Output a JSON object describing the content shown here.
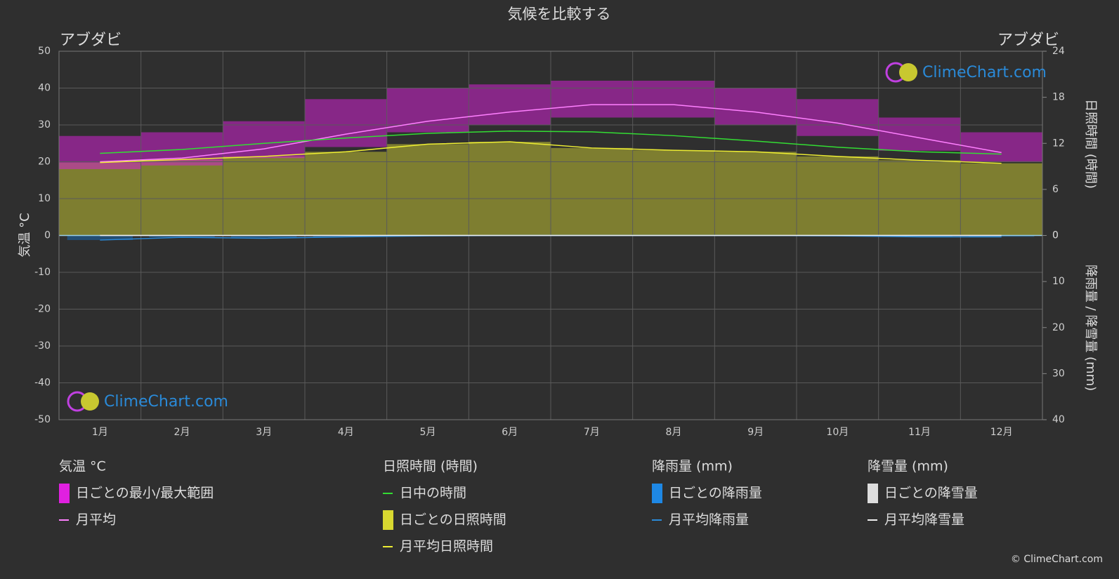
{
  "title": "気候を比較する",
  "chart_data": {
    "type": "climate",
    "location_left": "アブダビ",
    "location_right": "アブダビ",
    "y_label": "気温 °C",
    "y2_label": "日照時間 (時間)",
    "y3_label": "降雨量 / 降雪量 (mm)",
    "categories": [
      "1月",
      "2月",
      "3月",
      "4月",
      "5月",
      "6月",
      "7月",
      "8月",
      "9月",
      "10月",
      "11月",
      "12月"
    ],
    "ylim": [
      -50,
      50
    ],
    "yticks": [
      -50,
      -40,
      -30,
      -20,
      -10,
      0,
      10,
      20,
      30,
      40,
      50
    ],
    "y2lim": [
      0,
      24
    ],
    "y2ticks": [
      0,
      6,
      12,
      18,
      24
    ],
    "y3lim": [
      0,
      40
    ],
    "y3ticks": [
      0,
      10,
      20,
      30,
      40
    ],
    "grid": true,
    "temp_range": {
      "name": "日ごとの最小/最大範囲",
      "color": "#d020d0",
      "low": [
        18,
        19,
        21,
        24,
        28,
        30,
        32,
        32,
        30,
        27,
        23,
        20
      ],
      "high": [
        27,
        28,
        31,
        37,
        40,
        41,
        42,
        42,
        40,
        37,
        32,
        28
      ]
    },
    "sunshine_fill": "#8c8c30",
    "series": [
      {
        "name": "月平均",
        "color": "#ff80ff",
        "axis": "y",
        "values": [
          20,
          21,
          23.5,
          27.5,
          31,
          33.5,
          35.5,
          35.5,
          33.5,
          30.5,
          26.5,
          22.5
        ]
      },
      {
        "name": "日中の時間",
        "color": "#33dd33",
        "axis": "y2",
        "values": [
          10.7,
          11.2,
          12,
          12.7,
          13.3,
          13.6,
          13.5,
          13,
          12.3,
          11.5,
          10.9,
          10.6
        ]
      },
      {
        "name": "月平均日照時間",
        "color": "#eeee33",
        "axis": "y2",
        "values": [
          9.5,
          9.9,
          10.3,
          10.9,
          11.9,
          12.2,
          11.4,
          11.1,
          10.9,
          10.3,
          9.8,
          9.4
        ]
      },
      {
        "name": "月平均降雨量",
        "color": "#2a8ad8",
        "axis": "y3",
        "values": [
          1,
          0.4,
          0.6,
          0.3,
          0.1,
          0,
          0,
          0,
          0,
          0.1,
          0.3,
          0.3
        ]
      },
      {
        "name": "月平均降雪量",
        "color": "#eeeeee",
        "axis": "y3",
        "values": [
          0,
          0,
          0,
          0,
          0,
          0,
          0,
          0,
          0,
          0,
          0,
          0
        ]
      }
    ],
    "legend": [
      {
        "title": "気温 °C",
        "items": [
          {
            "label": "日ごとの最小/最大範囲",
            "color": "#e020e0",
            "marker": "box"
          },
          {
            "label": "月平均",
            "color": "#ff80ff",
            "marker": "line"
          }
        ]
      },
      {
        "title": "日照時間 (時間)",
        "items": [
          {
            "label": "日中の時間",
            "color": "#33dd33",
            "marker": "line"
          },
          {
            "label": "日ごとの日照時間",
            "color": "#d8d830",
            "marker": "box"
          },
          {
            "label": "月平均日照時間",
            "color": "#eeee33",
            "marker": "line"
          }
        ]
      },
      {
        "title": "降雨量 (mm)",
        "items": [
          {
            "label": "日ごとの降雨量",
            "color": "#1e88e5",
            "marker": "box"
          },
          {
            "label": "月平均降雨量",
            "color": "#2a8ad8",
            "marker": "line"
          }
        ]
      },
      {
        "title": "降雪量 (mm)",
        "items": [
          {
            "label": "日ごとの降雪量",
            "color": "#dddddd",
            "marker": "box"
          },
          {
            "label": "月平均降雪量",
            "color": "#eeeeee",
            "marker": "line"
          }
        ]
      }
    ]
  },
  "watermark": "ClimeChart.com",
  "copyright": "© ClimeChart.com"
}
